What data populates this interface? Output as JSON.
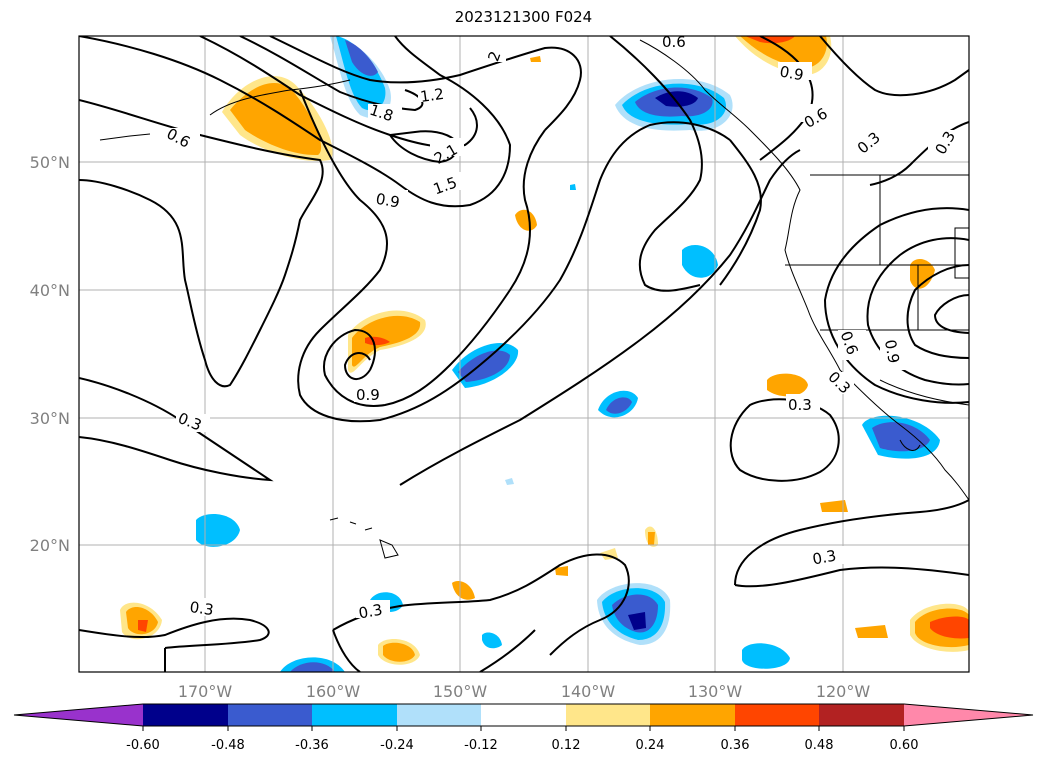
{
  "title": "2023121300 F024",
  "lat_labels": [
    "50°N",
    "40°N",
    "30°N",
    "20°N"
  ],
  "lon_labels": [
    "170°W",
    "160°W",
    "150°W",
    "140°W",
    "130°W",
    "120°W"
  ],
  "contour_labels": [
    "0.6",
    "1.2",
    "1.8",
    "2.1",
    "1.5",
    "0.9",
    "0.6",
    "0.9",
    "0.6",
    "0.3",
    "0.3",
    "0.9",
    "0.3",
    "0.3",
    "0.3",
    "0.3",
    "0.6",
    "0.9",
    "0.3",
    "2",
    "0.3"
  ],
  "colorbar": {
    "labels": [
      "-0.60",
      "-0.48",
      "-0.36",
      "-0.24",
      "-0.12",
      "0.12",
      "0.24",
      "0.36",
      "0.48",
      "0.60"
    ],
    "colors": [
      "#9932cc",
      "#00008b",
      "#3a5bcf",
      "#00bfff",
      "#b0e0fa",
      "#ffffff",
      "#ffe68a",
      "#ffa500",
      "#ff4500",
      "#b22222",
      "#ff88aa"
    ]
  }
}
